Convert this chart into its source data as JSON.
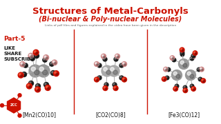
{
  "title_line1": "Structures of Metal-Carbonyls",
  "title_line2": "(Bi-nuclear & Poly-nuclear Molecules)",
  "subtitle": "Links of pdf files and figures explained in the video have been given in the description",
  "part_label": "Part-5",
  "social_labels": [
    "LIKE",
    "SHARE",
    "SUBSCRIBE"
  ],
  "molecule_labels": [
    "[Mn2(CO)10]",
    "[CO2(CO)8]",
    "[Fe3(CO)12]"
  ],
  "bg_color": "#ffffff",
  "title_color": "#cc1100",
  "subtitle_color": "#666666",
  "part_color": "#cc1100",
  "social_color": "#111111",
  "label_color": "#111111",
  "divider_color": "#cc1100",
  "logo_color": "#cc1100",
  "metal_gray": "#999999",
  "metal_dark": "#555555",
  "carbon_black": "#222222",
  "oxygen_red": "#cc1100",
  "oxygen_pink": "#cc8888",
  "stick_color": "#bbbbbb"
}
